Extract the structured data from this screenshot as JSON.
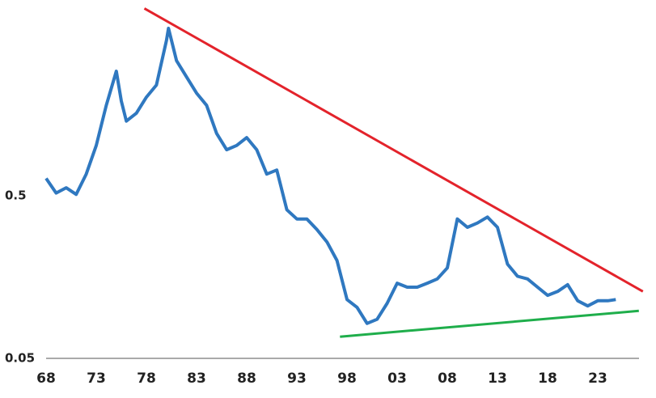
{
  "chart_data": {
    "type": "line",
    "log_y": true,
    "xlim": [
      1968,
      2027.6
    ],
    "ylim": [
      0.05,
      8
    ],
    "xticks": [
      {
        "value": 1968,
        "label": "68"
      },
      {
        "value": 1973,
        "label": "73"
      },
      {
        "value": 1978,
        "label": "78"
      },
      {
        "value": 1983,
        "label": "83"
      },
      {
        "value": 1988,
        "label": "88"
      },
      {
        "value": 1993,
        "label": "93"
      },
      {
        "value": 1998,
        "label": "98"
      },
      {
        "value": 2003,
        "label": "03"
      },
      {
        "value": 2008,
        "label": "08"
      },
      {
        "value": 2013,
        "label": "13"
      },
      {
        "value": 2018,
        "label": "18"
      },
      {
        "value": 2023,
        "label": "23"
      }
    ],
    "yticks": [
      0.05,
      0.5
    ],
    "series": [
      {
        "color": "#2f78c0",
        "width": 4,
        "x": [
          1968,
          1969,
          1970,
          1971,
          1972,
          1973,
          1974,
          1975,
          1975.5,
          1976,
          1977,
          1978,
          1979,
          1980,
          1980.2,
          1981,
          1982,
          1983,
          1984,
          1985,
          1986,
          1987,
          1988,
          1989,
          1990,
          1991,
          1992,
          1993,
          1994,
          1995,
          1996,
          1997,
          1998,
          1999,
          2000,
          2001,
          2002,
          2003,
          2004,
          2005,
          2006,
          2007,
          2008,
          2009,
          2010,
          2011,
          2012,
          2013,
          2014,
          2015,
          2016,
          2017,
          2018,
          2019,
          2020,
          2021,
          2022,
          2023,
          2024,
          2024.8
        ],
        "values": [
          0.64,
          0.52,
          0.56,
          0.51,
          0.68,
          1.02,
          1.8,
          2.92,
          1.91,
          1.44,
          1.61,
          2.02,
          2.4,
          4.51,
          5.36,
          3.39,
          2.69,
          2.14,
          1.8,
          1.21,
          0.96,
          1.02,
          1.14,
          0.96,
          0.68,
          0.72,
          0.41,
          0.36,
          0.36,
          0.31,
          0.26,
          0.2,
          0.115,
          0.103,
          0.082,
          0.087,
          0.109,
          0.145,
          0.137,
          0.137,
          0.145,
          0.154,
          0.18,
          0.36,
          0.32,
          0.34,
          0.37,
          0.32,
          0.19,
          0.16,
          0.154,
          0.137,
          0.122,
          0.129,
          0.142,
          0.113,
          0.105,
          0.113,
          0.113,
          0.115
        ]
      },
      {
        "color": "#e3232b",
        "width": 3,
        "x": [
          1977.8,
          2027.5
        ],
        "values": [
          7.1,
          0.129
        ]
      },
      {
        "color": "#1fae4b",
        "width": 3,
        "x": [
          1997.3,
          2027.1
        ],
        "values": [
          0.068,
          0.098
        ]
      }
    ]
  }
}
